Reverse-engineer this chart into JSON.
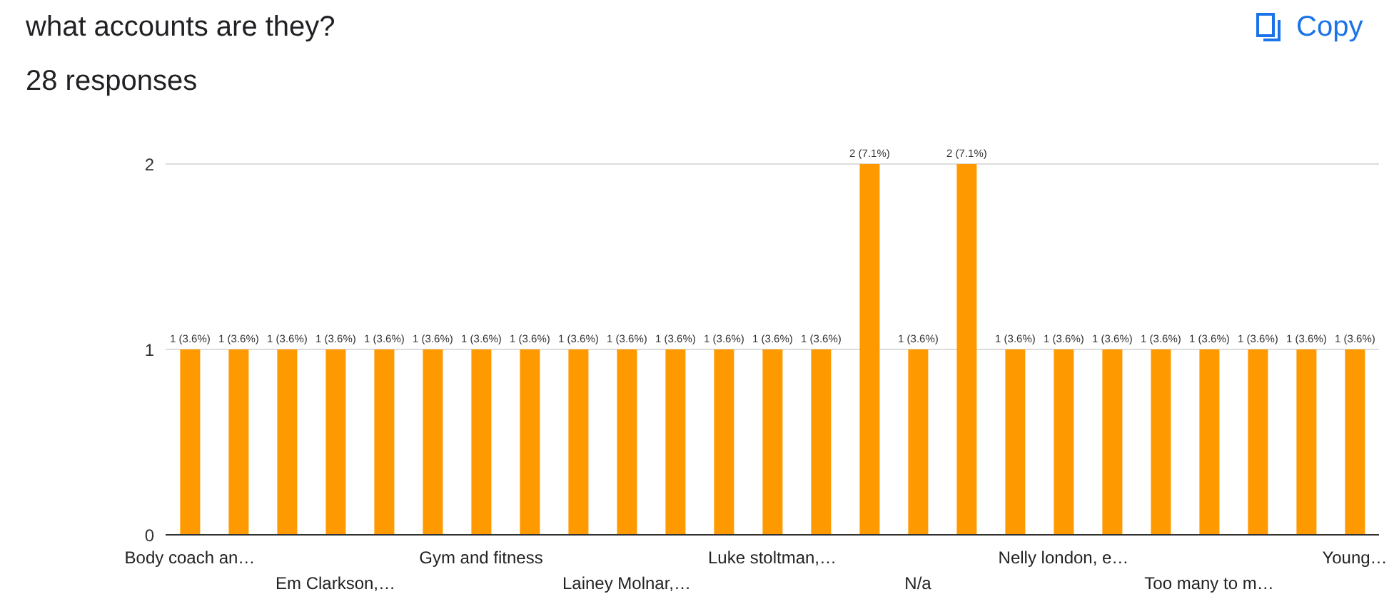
{
  "chart_data": {
    "type": "bar",
    "title": "what accounts are they?",
    "subtitle": "28 responses",
    "annotations": [
      "Copy"
    ],
    "categories": [
      "Body coach an…",
      null,
      null,
      "Em Clarkson,…",
      null,
      null,
      "Gym and fitness",
      null,
      null,
      "Lainey Molnar,…",
      null,
      null,
      "Luke stoltman,…",
      null,
      null,
      "N/a",
      null,
      null,
      "Nelly london, e…",
      null,
      null,
      "Too many to m…",
      null,
      null,
      "Young…"
    ],
    "values": [
      1,
      1,
      1,
      1,
      1,
      1,
      1,
      1,
      1,
      1,
      1,
      1,
      1,
      1,
      2,
      1,
      2,
      1,
      1,
      1,
      1,
      1,
      1,
      1,
      1
    ],
    "value_labels": [
      "1 (3.6%)",
      "1 (3.6%)",
      "1 (3.6%)",
      "1 (3.6%)",
      "1 (3.6%)",
      "1 (3.6%)",
      "1 (3.6%)",
      "1 (3.6%)",
      "1 (3.6%)",
      "1 (3.6%)",
      "1 (3.6%)",
      "1 (3.6%)",
      "1 (3.6%)",
      "1 (3.6%)",
      "2 (7.1%)",
      "1 (3.6%)",
      "2 (7.1%)",
      "1 (3.6%)",
      "1 (3.6%)",
      "1 (3.6%)",
      "1 (3.6%)",
      "1 (3.6%)",
      "1 (3.6%)",
      "1 (3.6%)",
      "1 (3.6%)"
    ],
    "color": "#ff9900",
    "ylim": [
      0,
      2
    ],
    "yticks": [
      0,
      1,
      2
    ],
    "grid": "y"
  }
}
